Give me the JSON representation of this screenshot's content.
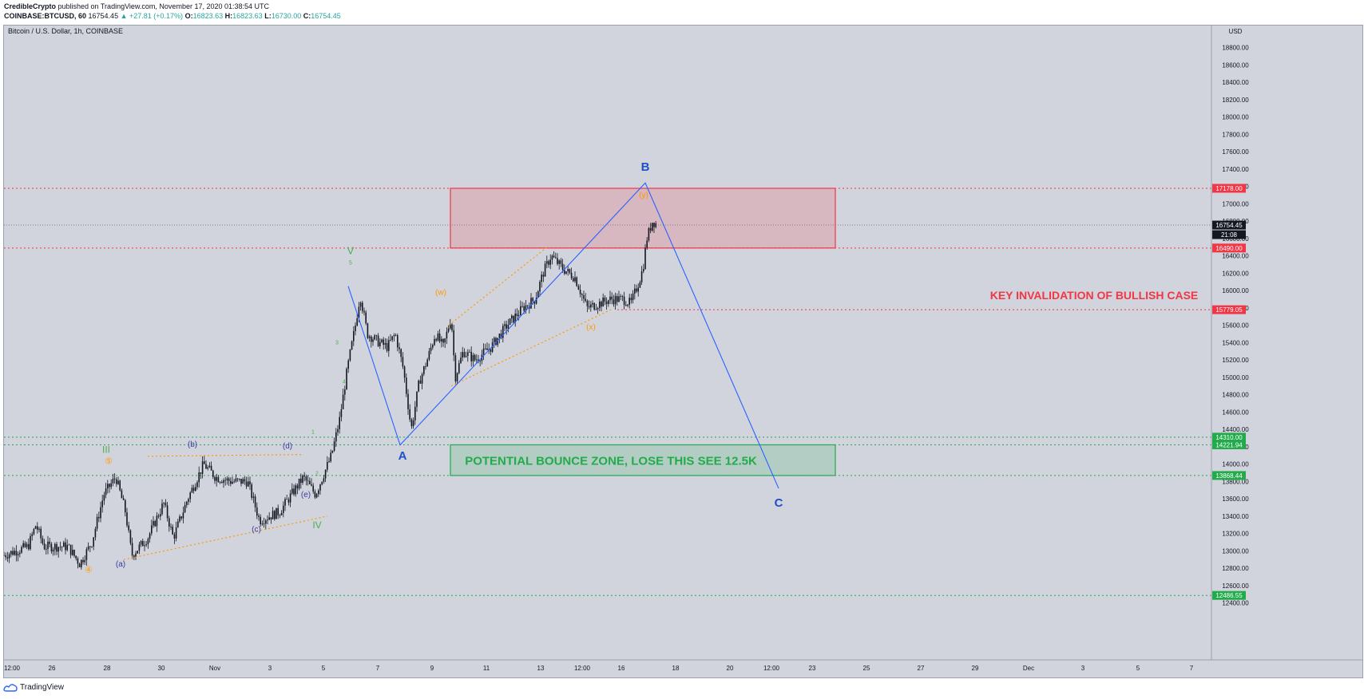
{
  "header": {
    "author": "CredibleCrypto",
    "published_text": " published on TradingView.com, November 17, 2020 01:38:54 UTC",
    "symbol": "COINBASE:BTCUSD, 60",
    "last": "16754.45",
    "change": "▲ +27.81 (+0.17%)",
    "o_label": "O:",
    "o_value": "16823.63",
    "h_label": "H:",
    "h_value": "16823.63",
    "l_label": "L:",
    "l_value": "16730.00",
    "c_label": "C:",
    "c_value": "16754.45"
  },
  "footer": {
    "brand": "TradingView",
    "logo_icon": "tradingview-logo-icon"
  },
  "colors": {
    "background": "#d1d4dc",
    "candle": "#131722",
    "red_level": "#f23645",
    "green_level": "#22ab4a",
    "wave_blue": "#2962ff",
    "wave_purple": "#3a3aa0",
    "wave_green": "#4caf50",
    "wave_orange": "#ff9800"
  },
  "chart_data": {
    "type": "candlestick",
    "title": "Bitcoin / U.S. Dollar, 1h, COINBASE",
    "ylabel": "USD",
    "ylim": [
      12250,
      18950
    ],
    "x_ticks": [
      "12:00",
      "26",
      "28",
      "30",
      "Nov",
      "3",
      "5",
      "7",
      "9",
      "11",
      "13",
      "12:00",
      "16",
      "18",
      "20",
      "12:00",
      "23",
      "25",
      "27",
      "29",
      "Dec",
      "3",
      "5",
      "7"
    ],
    "y_ticks": [
      "12400.00",
      "12600.00",
      "12800.00",
      "13000.00",
      "13200.00",
      "13400.00",
      "13600.00",
      "13800.00",
      "14000.00",
      "14200.00",
      "14400.00",
      "14600.00",
      "14800.00",
      "15000.00",
      "15200.00",
      "15400.00",
      "15600.00",
      "15800.00",
      "16000.00",
      "16200.00",
      "16400.00",
      "16600.00",
      "16800.00",
      "17000.00",
      "17200.00",
      "17400.00",
      "17600.00",
      "17800.00",
      "18000.00",
      "18200.00",
      "18400.00",
      "18600.00",
      "18800.00"
    ],
    "price_path": [
      [
        0,
        12950
      ],
      [
        30,
        13050
      ],
      [
        40,
        13300
      ],
      [
        50,
        13050
      ],
      [
        80,
        13050
      ],
      [
        95,
        12850
      ],
      [
        110,
        13100
      ],
      [
        125,
        13650
      ],
      [
        140,
        13850
      ],
      [
        152,
        13450
      ],
      [
        160,
        12950
      ],
      [
        180,
        13150
      ],
      [
        200,
        13550
      ],
      [
        212,
        13150
      ],
      [
        230,
        13600
      ],
      [
        250,
        14000
      ],
      [
        265,
        13850
      ],
      [
        285,
        13800
      ],
      [
        305,
        13800
      ],
      [
        320,
        13350
      ],
      [
        345,
        13450
      ],
      [
        375,
        13850
      ],
      [
        390,
        13650
      ],
      [
        410,
        14100
      ],
      [
        420,
        14500
      ],
      [
        430,
        15100
      ],
      [
        440,
        15600
      ],
      [
        446,
        15950
      ],
      [
        455,
        15500
      ],
      [
        470,
        15400
      ],
      [
        480,
        15350
      ],
      [
        490,
        15500
      ],
      [
        500,
        15100
      ],
      [
        510,
        14400
      ],
      [
        520,
        14950
      ],
      [
        530,
        15200
      ],
      [
        540,
        15500
      ],
      [
        550,
        15350
      ],
      [
        560,
        15700
      ],
      [
        565,
        15000
      ],
      [
        575,
        15300
      ],
      [
        590,
        15200
      ],
      [
        610,
        15350
      ],
      [
        630,
        15600
      ],
      [
        650,
        15800
      ],
      [
        665,
        15900
      ],
      [
        675,
        16200
      ],
      [
        685,
        16400
      ],
      [
        700,
        16250
      ],
      [
        715,
        16150
      ],
      [
        730,
        15800
      ],
      [
        745,
        15850
      ],
      [
        760,
        15900
      ],
      [
        775,
        15900
      ],
      [
        785,
        15850
      ],
      [
        795,
        16100
      ],
      [
        800,
        16250
      ],
      [
        805,
        16600
      ],
      [
        812,
        16800
      ],
      [
        818,
        16760
      ]
    ],
    "horizontal_levels": [
      {
        "value": 17178.0,
        "label": "17178.00",
        "color": "red"
      },
      {
        "value": 16754.45,
        "label": "16754.45",
        "color": "gray"
      },
      {
        "value": 16490.0,
        "label": "16490.00",
        "color": "red"
      },
      {
        "value": 15779.05,
        "label": "15779.05",
        "color": "red"
      },
      {
        "value": 14310.0,
        "label": "14310.00",
        "color": "green"
      },
      {
        "value": 14221.94,
        "label": "14221.94",
        "color": "green"
      },
      {
        "value": 13868.44,
        "label": "13868.44",
        "color": "green"
      },
      {
        "value": 12486.55,
        "label": "12486.55",
        "color": "green"
      }
    ],
    "countdown": "21:08",
    "zones": [
      {
        "name": "resistance-zone",
        "from": 16490,
        "to": 17178,
        "color": "red",
        "text": ""
      },
      {
        "name": "bounce-zone",
        "from": 13868.44,
        "to": 14221.94,
        "color": "green",
        "text": "POTENTIAL BOUNCE ZONE, LOSE THIS SEE 12.5K"
      }
    ],
    "annotations": [
      {
        "text": "KEY INVALIDATION OF BULLISH CASE",
        "color": "red"
      },
      {
        "text": "A",
        "color": "blue"
      },
      {
        "text": "B",
        "color": "blue"
      },
      {
        "text": "C",
        "color": "blue"
      },
      {
        "text": "III",
        "color": "green"
      },
      {
        "text": "IV",
        "color": "green"
      },
      {
        "text": "V",
        "color": "green"
      },
      {
        "text": "5",
        "color": "green"
      },
      {
        "text": "3",
        "color": "green"
      },
      {
        "text": "4",
        "color": "green"
      },
      {
        "text": "1",
        "color": "green"
      },
      {
        "text": "2",
        "color": "green"
      },
      {
        "text": "(a)",
        "color": "purple"
      },
      {
        "text": "(b)",
        "color": "purple"
      },
      {
        "text": "(c)",
        "color": "purple"
      },
      {
        "text": "(d)",
        "color": "purple"
      },
      {
        "text": "(e)",
        "color": "purple"
      },
      {
        "text": "(w)",
        "color": "orange"
      },
      {
        "text": "(x)",
        "color": "orange"
      },
      {
        "text": "(y)",
        "color": "orange"
      },
      {
        "text": "⑤",
        "color": "orange"
      },
      {
        "text": "④",
        "color": "orange"
      }
    ],
    "grid": false,
    "legend": "none"
  }
}
